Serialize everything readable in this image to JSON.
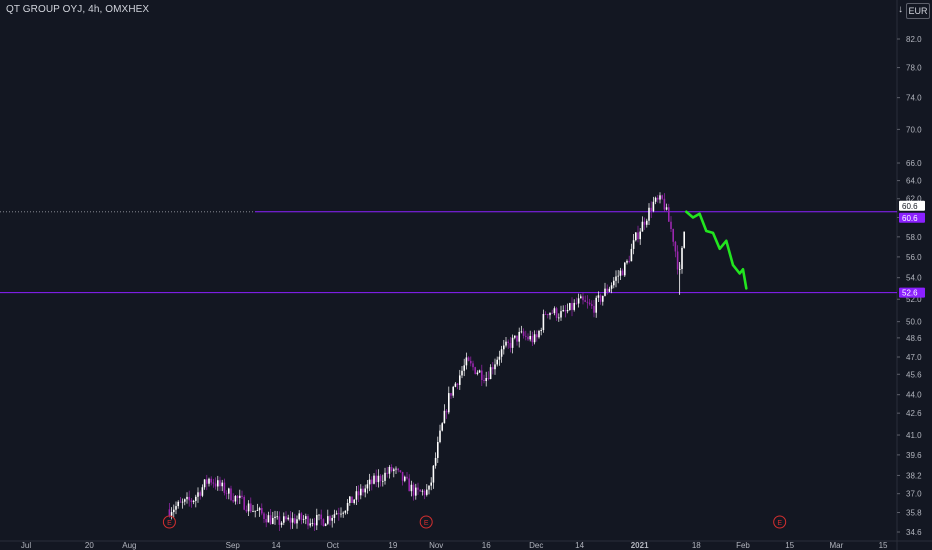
{
  "header": {
    "title": "QT GROUP OYJ, 4h, OMXHEX",
    "currency": "EUR",
    "scale_icon": "arrow-down-icon"
  },
  "colors": {
    "background": "#131722",
    "grid_text": "#b2b5be",
    "candle_up": "#ffffff",
    "candle_down": "#9c27b0",
    "hline": "#8b20ff",
    "projection": "#22e51f",
    "earnings": "#d32f2f",
    "price_tag": "#8b20ff"
  },
  "chart_data": {
    "type": "candlestick",
    "y_axis": {
      "labels": [
        "82.0",
        "78.0",
        "74.0",
        "70.0",
        "66.0",
        "64.0",
        "62.0",
        "60.0",
        "58.0",
        "56.0",
        "54.0",
        "52.0",
        "50.0",
        "48.6",
        "47.0",
        "45.6",
        "44.0",
        "42.6",
        "41.0",
        "39.6",
        "38.2",
        "37.0",
        "35.8",
        "34.6"
      ],
      "values": [
        82.0,
        78.0,
        74.0,
        70.0,
        66.0,
        64.0,
        62.0,
        60.0,
        58.0,
        56.0,
        54.0,
        52.0,
        50.0,
        48.6,
        47.0,
        45.6,
        44.0,
        42.6,
        41.0,
        39.6,
        38.2,
        37.0,
        35.8,
        34.6
      ],
      "scale": "log",
      "ylim": [
        34.3,
        86.0
      ]
    },
    "x_axis": {
      "labels": [
        "Jul",
        "20",
        "Aug",
        "Sep",
        "14",
        "Oct",
        "19",
        "Nov",
        "16",
        "Dec",
        "14",
        "2021",
        "18",
        "Feb",
        "15",
        "Mar",
        "15"
      ],
      "dates": [
        "2020-07-01",
        "2020-07-20",
        "2020-08-01",
        "2020-09-01",
        "2020-09-14",
        "2020-10-01",
        "2020-10-19",
        "2020-11-01",
        "2020-11-16",
        "2020-12-01",
        "2020-12-14",
        "2021-01-01",
        "2021-01-18",
        "2021-02-01",
        "2021-02-15",
        "2021-03-01",
        "2021-03-15"
      ],
      "bold": [
        "2021"
      ]
    },
    "price_levels": [
      {
        "price": 60.6,
        "label": "60.6",
        "style": "line"
      },
      {
        "price": 52.6,
        "label": "52.6",
        "style": "line"
      }
    ],
    "last_price": {
      "value": 60.6,
      "label": "60.6"
    },
    "earnings_markers": [
      {
        "date": "2020-08-13",
        "label": "E"
      },
      {
        "date": "2020-10-29",
        "label": "E"
      },
      {
        "date": "2021-02-12",
        "label": "E"
      }
    ],
    "price_path": [
      [
        "2020-08-13",
        36.0
      ],
      [
        "2020-08-20",
        36.6
      ],
      [
        "2020-08-25",
        38.0
      ],
      [
        "2020-08-31",
        37.0
      ],
      [
        "2020-09-07",
        36.0
      ],
      [
        "2020-09-14",
        35.2
      ],
      [
        "2020-09-21",
        35.4
      ],
      [
        "2020-09-28",
        35.3
      ],
      [
        "2020-10-05",
        36.2
      ],
      [
        "2020-10-12",
        37.6
      ],
      [
        "2020-10-19",
        38.6
      ],
      [
        "2020-10-26",
        37.0
      ],
      [
        "2020-10-30",
        37.2
      ],
      [
        "2020-11-02",
        40.8
      ],
      [
        "2020-11-05",
        44.0
      ],
      [
        "2020-11-10",
        46.5
      ],
      [
        "2020-11-16",
        45.4
      ],
      [
        "2020-11-20",
        47.3
      ],
      [
        "2020-11-26",
        48.8
      ],
      [
        "2020-12-01",
        48.4
      ],
      [
        "2020-12-04",
        51.0
      ],
      [
        "2020-12-09",
        50.6
      ],
      [
        "2020-12-14",
        51.8
      ],
      [
        "2020-12-18",
        51.2
      ],
      [
        "2020-12-22",
        52.8
      ],
      [
        "2020-12-28",
        55.2
      ],
      [
        "2020-12-31",
        58.0
      ],
      [
        "2021-01-05",
        61.5
      ],
      [
        "2021-01-08",
        61.8
      ],
      [
        "2021-01-11",
        58.0
      ],
      [
        "2021-01-13",
        54.2
      ],
      [
        "2021-01-15",
        60.6
      ]
    ],
    "projection": [
      [
        "2021-01-15",
        60.6
      ],
      [
        "2021-01-17",
        60.0
      ],
      [
        "2021-01-19",
        60.4
      ],
      [
        "2021-01-21",
        58.6
      ],
      [
        "2021-01-23",
        58.4
      ],
      [
        "2021-01-25",
        56.8
      ],
      [
        "2021-01-27",
        57.6
      ],
      [
        "2021-01-29",
        55.2
      ],
      [
        "2021-01-31",
        54.4
      ],
      [
        "2021-02-01",
        54.8
      ],
      [
        "2021-02-02",
        53.0
      ]
    ]
  }
}
